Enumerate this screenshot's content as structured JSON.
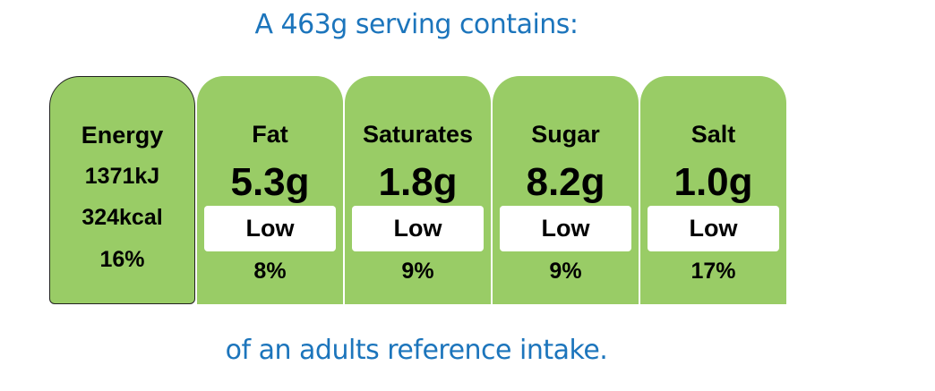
{
  "header": {
    "text": "A 463g serving contains:"
  },
  "footer": {
    "text": "of an adults reference intake."
  },
  "energy": {
    "label": "Energy",
    "kj": "1371kJ",
    "kcal": "324kcal",
    "percent": "16%"
  },
  "nutrients": [
    {
      "label": "Fat",
      "value": "5.3g",
      "level": "Low",
      "percent": "8%"
    },
    {
      "label": "Saturates",
      "value": "1.8g",
      "level": "Low",
      "percent": "9%"
    },
    {
      "label": "Sugar",
      "value": "8.2g",
      "level": "Low",
      "percent": "9%"
    },
    {
      "label": "Salt",
      "value": "1.0g",
      "level": "Low",
      "percent": "17%"
    }
  ],
  "colors": {
    "accent_text": "#1c75bc",
    "label_green": "#99cc66"
  }
}
